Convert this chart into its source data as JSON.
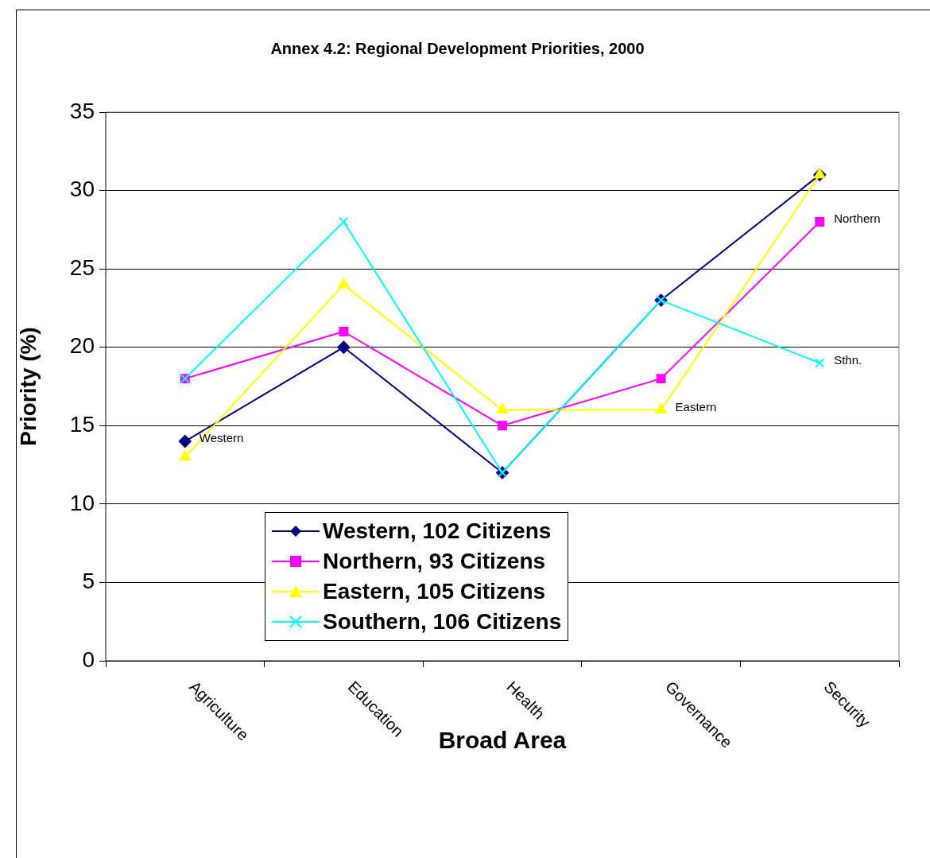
{
  "chart_data": {
    "type": "line",
    "title": "Annex 4.2: Regional Development Priorities, 2000",
    "xlabel": "Broad Area",
    "ylabel": "Priority (%)",
    "categories": [
      "Agriculture",
      "Education",
      "Health",
      "Governance",
      "Security"
    ],
    "series": [
      {
        "name": "Western, 102 Citizens",
        "color": "#000080",
        "marker": "diamond",
        "values": [
          14,
          20,
          12,
          23,
          31
        ]
      },
      {
        "name": "Northern, 93 Citizens",
        "color": "#ff00ff",
        "marker": "square",
        "values": [
          18,
          21,
          15,
          18,
          28
        ]
      },
      {
        "name": "Eastern, 105 Citizens",
        "color": "#ffff00",
        "marker": "triangle",
        "values": [
          13,
          24,
          16,
          16,
          31
        ]
      },
      {
        "name": "Southern, 106 Citizens",
        "color": "#00ffff",
        "marker": "cross",
        "values": [
          18,
          28,
          12,
          23,
          19
        ]
      }
    ],
    "annotations": [
      {
        "text": "Western",
        "x": "Agriculture",
        "y": 14
      },
      {
        "text": "Northern",
        "x": "Security",
        "y": 28
      },
      {
        "text": "Sthn.",
        "x": "Security",
        "y": 19
      },
      {
        "text": "Eastern",
        "x": "Governance",
        "y": 16
      }
    ],
    "ylim": [
      0,
      35
    ],
    "yticks": [
      0,
      5,
      10,
      15,
      20,
      25,
      30,
      35
    ],
    "grid": "y",
    "legend": "bottom left",
    "line_style": "solid"
  }
}
